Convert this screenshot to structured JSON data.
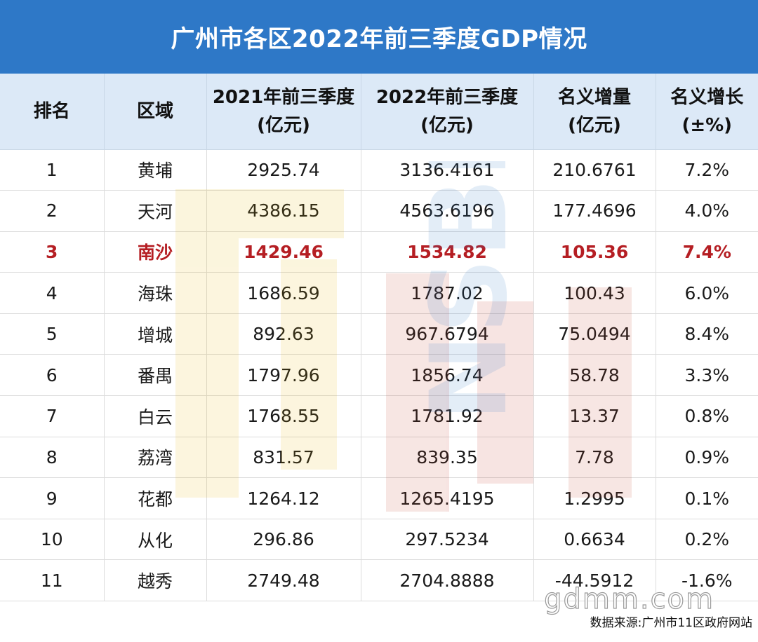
{
  "title": "广州市各区2022年前三季度GDP情况",
  "columns": [
    {
      "line1": "排名",
      "line2": ""
    },
    {
      "line1": "区域",
      "line2": ""
    },
    {
      "line1": "2021年前三季度",
      "line2": "(亿元)"
    },
    {
      "line1": "2022年前三季度",
      "line2": "(亿元)"
    },
    {
      "line1": "名义增量",
      "line2": "(亿元)"
    },
    {
      "line1": "名义增长",
      "line2": "(±%)"
    }
  ],
  "rows": [
    [
      "1",
      "黄埔",
      "2925.74",
      "3136.4161",
      "210.6761",
      "7.2%"
    ],
    [
      "2",
      "天河",
      "4386.15",
      "4563.6196",
      "177.4696",
      "4.0%"
    ],
    [
      "3",
      "南沙",
      "1429.46",
      "1534.82",
      "105.36",
      "7.4%"
    ],
    [
      "4",
      "海珠",
      "1686.59",
      "1787.02",
      "100.43",
      "6.0%"
    ],
    [
      "5",
      "增城",
      "892.63",
      "967.6794",
      "75.0494",
      "8.4%"
    ],
    [
      "6",
      "番禺",
      "1797.96",
      "1856.74",
      "58.78",
      "3.3%"
    ],
    [
      "7",
      "白云",
      "1768.55",
      "1781.92",
      "13.37",
      "0.8%"
    ],
    [
      "8",
      "荔湾",
      "831.57",
      "839.35",
      "7.78",
      "0.9%"
    ],
    [
      "9",
      "花都",
      "1264.12",
      "1265.4195",
      "1.2995",
      "0.1%"
    ],
    [
      "10",
      "从化",
      "296.86",
      "297.5234",
      "0.6634",
      "0.2%"
    ],
    [
      "11",
      "越秀",
      "2749.48",
      "2704.8888",
      "-44.5912",
      "-1.6%"
    ]
  ],
  "highlight_row_index": 2,
  "highlight_color": "#b51e23",
  "header_bg": "#dce9f7",
  "title_bg": "#2e78c7",
  "watermark_text": "gdmm.com",
  "watermark_logo_text": "NSBL",
  "source": "数据来源:广州市11区政府网站"
}
